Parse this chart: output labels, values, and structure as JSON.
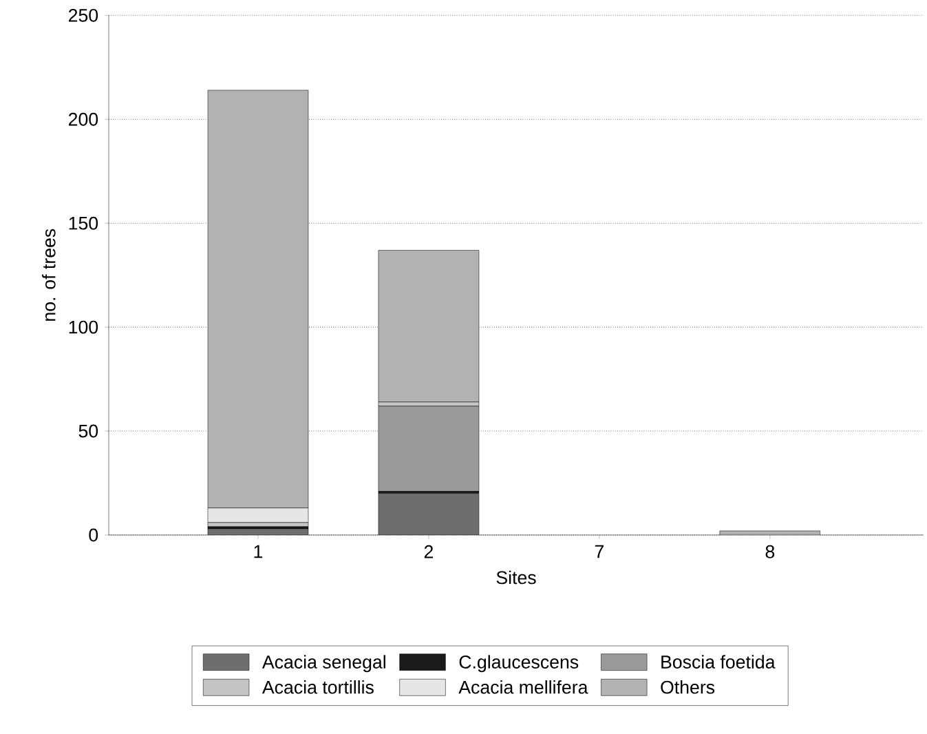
{
  "chart_data": {
    "type": "bar",
    "stacked": true,
    "xlabel": "Sites",
    "ylabel": "no. of trees",
    "categories": [
      "1",
      "2",
      "7",
      "8"
    ],
    "series": [
      {
        "name": "Acacia senegal",
        "color": "#6e6e6e",
        "values": [
          3,
          20,
          0,
          0
        ]
      },
      {
        "name": "C.glaucescens",
        "color": "#1a1a1a",
        "values": [
          1,
          1,
          0,
          0
        ]
      },
      {
        "name": "Boscia foetida",
        "color": "#9a9a9a",
        "values": [
          0,
          41,
          0,
          0
        ]
      },
      {
        "name": "Acacia tortillis",
        "color": "#c4c4c4",
        "values": [
          2,
          2,
          0,
          0
        ]
      },
      {
        "name": "Acacia mellifera",
        "color": "#e6e6e6",
        "values": [
          7,
          0,
          0,
          0
        ]
      },
      {
        "name": "Others",
        "color": "#b2b2b2",
        "values": [
          201,
          73,
          0,
          2
        ]
      }
    ],
    "ylim": [
      0,
      250
    ],
    "yticks": [
      0,
      50,
      100,
      150,
      200,
      250
    ],
    "grid": "y",
    "legend": "bottom"
  }
}
